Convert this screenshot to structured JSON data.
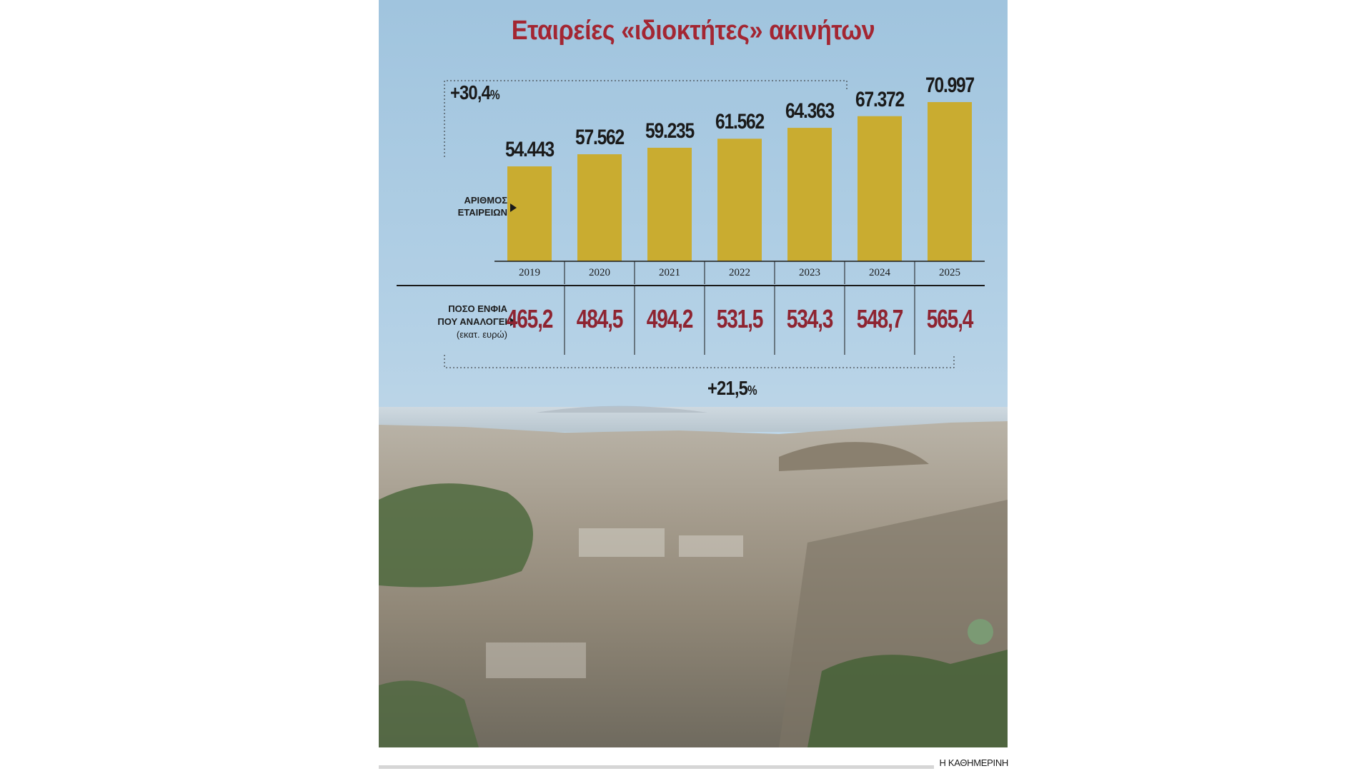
{
  "title": "Εταιρείες «ιδιοκτήτες» ακινήτων",
  "companies_label": [
    "ΑΡΙΘΜΟΣ",
    "ΕΤΑΙΡΕΙΩΝ"
  ],
  "enfia_label": [
    "ΠΟΣΟ ΕΝΦΙΑ",
    "ΠΟΥ ΑΝΑΛΟΓΕΙ",
    "(εκατ. ευρώ)"
  ],
  "companies_growth": {
    "value": "+30,4",
    "unit": "%"
  },
  "enfia_growth": {
    "value": "+21,5",
    "unit": "%"
  },
  "credit": "Η ΚΑΘΗΜΕΡΙΝΗ",
  "colors": {
    "title": "#a32632",
    "bar": "#c9ac30",
    "enfia": "#8e2431",
    "sky": "#a9cbe3"
  },
  "chart_data": [
    {
      "type": "bar",
      "categories": [
        "2019",
        "2020",
        "2021",
        "2022",
        "2023",
        "2024",
        "2025"
      ],
      "values": [
        54443,
        57562,
        59235,
        61562,
        64363,
        67372,
        70997
      ],
      "labels": [
        "54.443",
        "57.562",
        "59.235",
        "61.562",
        "64.363",
        "67.372",
        "70.997"
      ],
      "ylim": [
        0,
        75000
      ],
      "grid": false,
      "legend": "none"
    },
    {
      "type": "table",
      "categories": [
        "2019",
        "2020",
        "2021",
        "2022",
        "2023",
        "2024",
        "2025"
      ],
      "values": [
        465.2,
        484.5,
        494.2,
        531.5,
        534.3,
        548.7,
        565.4
      ],
      "labels": [
        "465,2",
        "484,5",
        "494,2",
        "531,5",
        "534,3",
        "548,7",
        "565,4"
      ]
    }
  ]
}
